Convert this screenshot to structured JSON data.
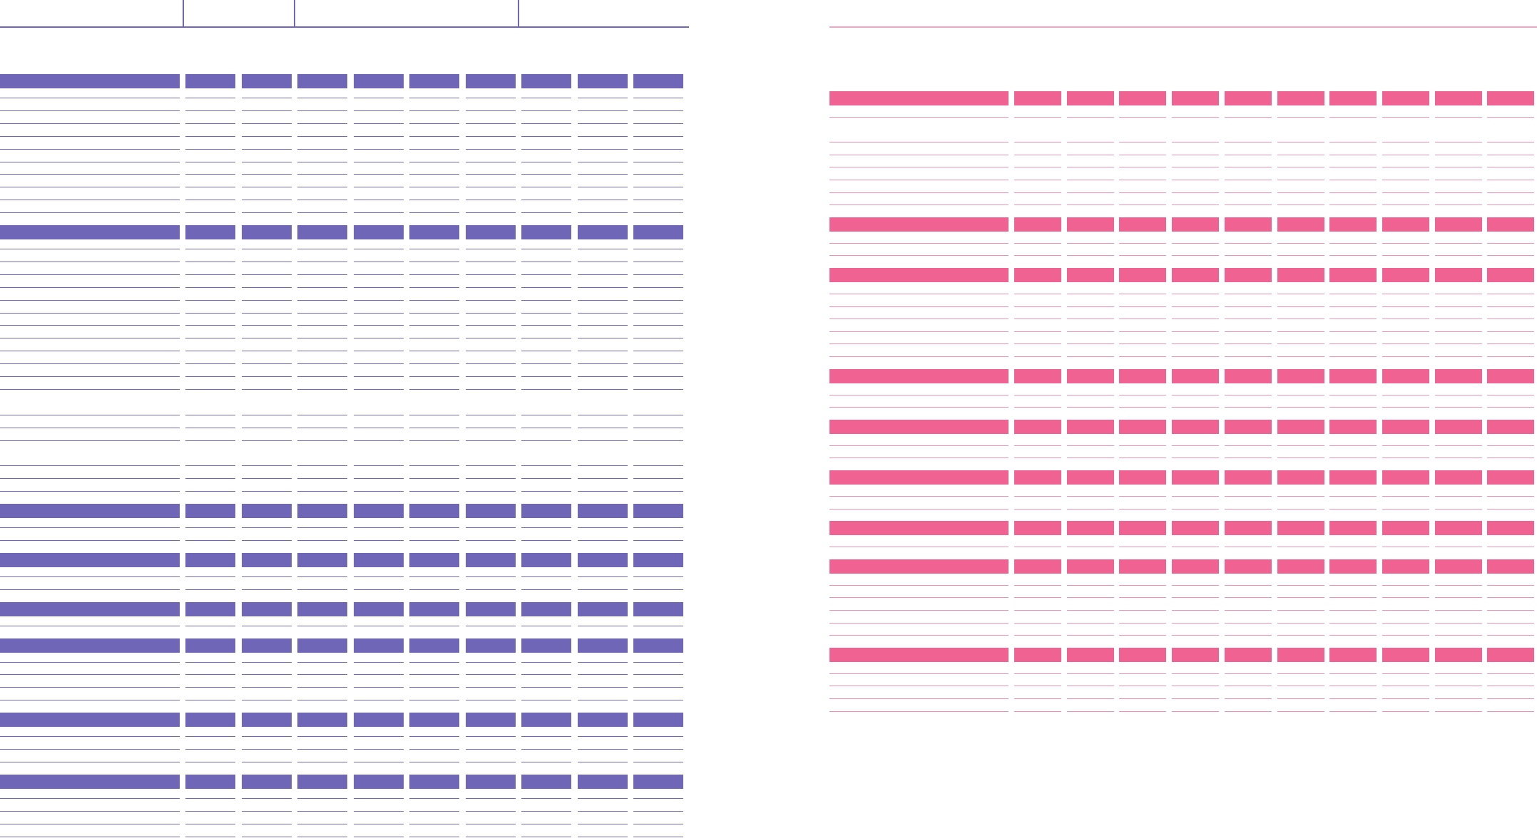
{
  "page": {
    "description_free": true
  },
  "colors": {
    "left_accent": "#7066b8",
    "right_accent": "#f06292"
  },
  "left_sheet": {
    "name": "purple-table",
    "columns": 10,
    "rows": [
      "band",
      "rule",
      "rule",
      "rule",
      "rule",
      "rule",
      "rule",
      "rule",
      "rule",
      "rule",
      "rule",
      "band",
      "rule",
      "rule",
      "rule",
      "rule",
      "rule",
      "rule",
      "rule",
      "rule",
      "rule",
      "rule",
      "rule",
      "rule",
      "gap",
      "rule",
      "rule",
      "rule",
      "gap",
      "rule",
      "rule",
      "rule",
      "band",
      "rule",
      "rule",
      "band",
      "rule",
      "rule",
      "band",
      "rule",
      "band",
      "rule",
      "rule",
      "rule",
      "rule",
      "band",
      "rule",
      "rule",
      "rule",
      "band",
      "rule",
      "rule",
      "rule",
      "rule"
    ]
  },
  "right_sheet": {
    "name": "pink-table",
    "columns": 11,
    "rows": [
      "band",
      "rule",
      "gap",
      "rule",
      "rule",
      "rule",
      "rule",
      "rule",
      "rule",
      "band",
      "rule",
      "rule",
      "band",
      "rule",
      "rule",
      "rule",
      "rule",
      "rule",
      "rule",
      "band",
      "rule",
      "rule",
      "band",
      "rule",
      "rule",
      "band",
      "rule",
      "rule",
      "band",
      "rule",
      "band",
      "rule",
      "rule",
      "rule",
      "rule",
      "rule",
      "band",
      "rule",
      "rule",
      "rule",
      "rule"
    ]
  }
}
